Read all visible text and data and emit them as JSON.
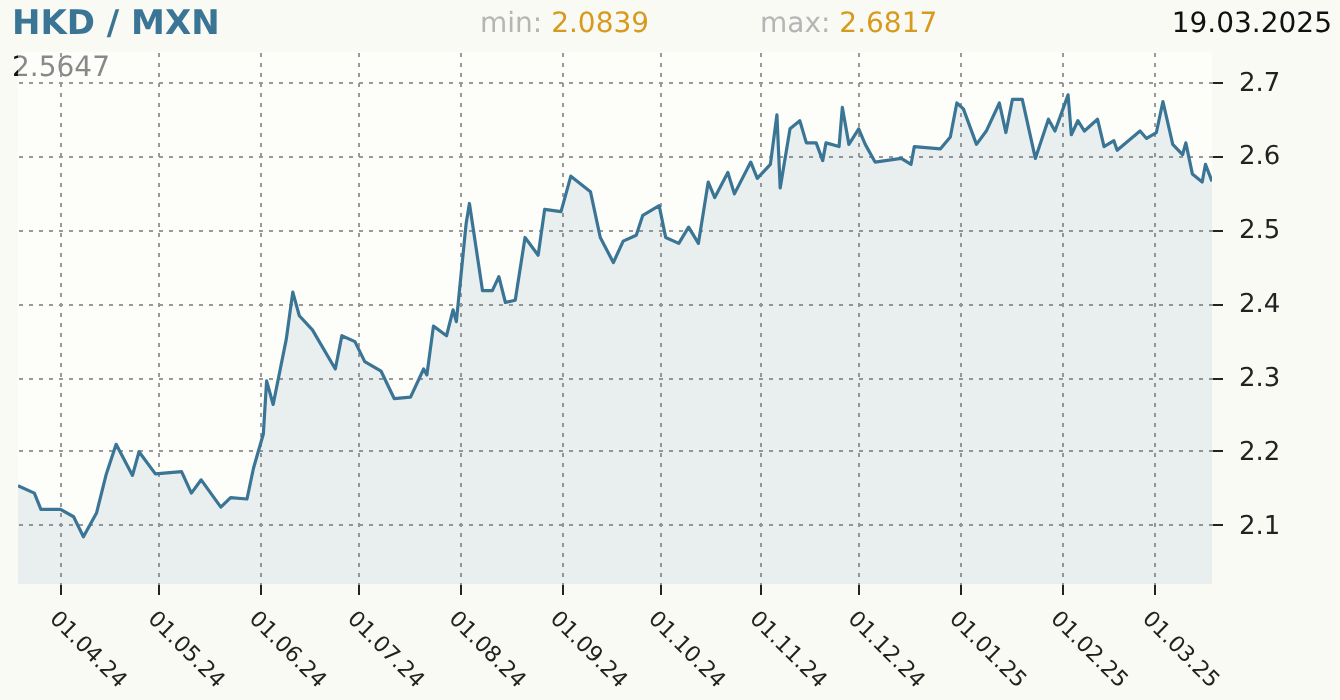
{
  "chart_data": {
    "type": "area",
    "title": "HKD / MXN",
    "annotations": [
      "2.5647",
      "min: 2.0839",
      "max: 2.6817",
      "19.03.2025"
    ],
    "x": [
      "2024-03-19",
      "2024-03-24",
      "2024-03-26",
      "2024-04-01",
      "2024-04-05",
      "2024-04-08",
      "2024-04-12",
      "2024-04-15",
      "2024-04-18",
      "2024-04-23",
      "2024-04-25",
      "2024-04-30",
      "2024-05-08",
      "2024-05-11",
      "2024-05-14",
      "2024-05-20",
      "2024-05-23",
      "2024-05-28",
      "2024-05-30",
      "2024-06-02",
      "2024-06-03",
      "2024-06-05",
      "2024-06-09",
      "2024-06-11",
      "2024-06-13",
      "2024-06-17",
      "2024-06-24",
      "2024-06-26",
      "2024-06-30",
      "2024-07-03",
      "2024-07-08",
      "2024-07-12",
      "2024-07-17",
      "2024-07-21",
      "2024-07-22",
      "2024-07-24",
      "2024-07-28",
      "2024-07-30",
      "2024-07-31",
      "2024-08-03",
      "2024-08-04",
      "2024-08-06",
      "2024-08-08",
      "2024-08-11",
      "2024-08-13",
      "2024-08-15",
      "2024-08-18",
      "2024-08-21",
      "2024-08-25",
      "2024-08-27",
      "2024-09-01",
      "2024-09-04",
      "2024-09-10",
      "2024-09-13",
      "2024-09-17",
      "2024-09-20",
      "2024-09-24",
      "2024-09-26",
      "2024-10-01",
      "2024-10-03",
      "2024-10-07",
      "2024-10-10",
      "2024-10-13",
      "2024-10-16",
      "2024-10-18",
      "2024-10-22",
      "2024-10-24",
      "2024-10-29",
      "2024-10-31",
      "2024-11-04",
      "2024-11-06",
      "2024-11-07",
      "2024-11-10",
      "2024-11-13",
      "2024-11-15",
      "2024-11-18",
      "2024-11-20",
      "2024-11-21",
      "2024-11-25",
      "2024-11-26",
      "2024-11-28",
      "2024-12-01",
      "2024-12-03",
      "2024-12-06",
      "2024-12-14",
      "2024-12-17",
      "2024-12-18",
      "2024-12-26",
      "2024-12-29",
      "2024-12-31",
      "2025-01-02",
      "2025-01-06",
      "2025-01-09",
      "2025-01-13",
      "2025-01-15",
      "2025-01-17",
      "2025-01-20",
      "2025-01-24",
      "2025-01-28",
      "2025-01-30",
      "2025-02-03",
      "2025-02-04",
      "2025-02-06",
      "2025-02-08",
      "2025-02-12",
      "2025-02-14",
      "2025-02-17",
      "2025-02-18",
      "2025-02-25",
      "2025-02-27",
      "2025-03-02",
      "2025-03-04",
      "2025-03-07",
      "2025-03-10",
      "2025-03-11",
      "2025-03-13",
      "2025-03-16",
      "2025-03-17",
      "2025-03-19"
    ],
    "series": [
      {
        "color": "#3a7595",
        "values": [
          2.153,
          2.143,
          2.121,
          2.121,
          2.111,
          2.084,
          2.116,
          2.169,
          2.209,
          2.167,
          2.199,
          2.169,
          2.172,
          2.143,
          2.161,
          2.124,
          2.137,
          2.135,
          2.177,
          2.223,
          2.295,
          2.263,
          2.351,
          2.415,
          2.383,
          2.364,
          2.311,
          2.356,
          2.348,
          2.321,
          2.308,
          2.271,
          2.273,
          2.311,
          2.303,
          2.369,
          2.356,
          2.391,
          2.375,
          2.508,
          2.535,
          2.476,
          2.417,
          2.417,
          2.436,
          2.401,
          2.404,
          2.489,
          2.465,
          2.527,
          2.524,
          2.572,
          2.551,
          2.489,
          2.455,
          2.484,
          2.492,
          2.519,
          2.532,
          2.489,
          2.481,
          2.503,
          2.481,
          2.564,
          2.543,
          2.577,
          2.548,
          2.591,
          2.569,
          2.588,
          2.655,
          2.556,
          2.636,
          2.647,
          2.617,
          2.617,
          2.593,
          2.617,
          2.612,
          2.665,
          2.615,
          2.636,
          2.615,
          2.591,
          2.596,
          2.588,
          2.612,
          2.609,
          2.625,
          2.671,
          2.663,
          2.615,
          2.633,
          2.671,
          2.631,
          2.676,
          2.676,
          2.596,
          2.649,
          2.633,
          2.682,
          2.628,
          2.647,
          2.633,
          2.649,
          2.612,
          2.62,
          2.607,
          2.633,
          2.623,
          2.631,
          2.673,
          2.615,
          2.601,
          2.617,
          2.575,
          2.564,
          2.588,
          2.565
        ]
      }
    ],
    "xlim": [
      "2024-03-19",
      "2025-03-19"
    ],
    "xticks": [
      {
        "value": "2024-04-01",
        "label": "01.04.24"
      },
      {
        "value": "2024-05-01",
        "label": "01.05.24"
      },
      {
        "value": "2024-06-01",
        "label": "01.06.24"
      },
      {
        "value": "2024-07-01",
        "label": "01.07.24"
      },
      {
        "value": "2024-08-01",
        "label": "01.08.24"
      },
      {
        "value": "2024-09-01",
        "label": "01.09.24"
      },
      {
        "value": "2024-10-01",
        "label": "01.10.24"
      },
      {
        "value": "2024-11-01",
        "label": "01.11.24"
      },
      {
        "value": "2024-12-01",
        "label": "01.12.24"
      },
      {
        "value": "2025-01-01",
        "label": "01.01.25"
      },
      {
        "value": "2025-02-01",
        "label": "01.02.25"
      },
      {
        "value": "2025-03-01",
        "label": "01.03.25"
      }
    ],
    "ylim": [
      2.02,
      2.74
    ],
    "yticks": [
      2.1,
      2.2,
      2.3,
      2.4,
      2.5,
      2.6,
      2.7
    ],
    "grid": true
  }
}
